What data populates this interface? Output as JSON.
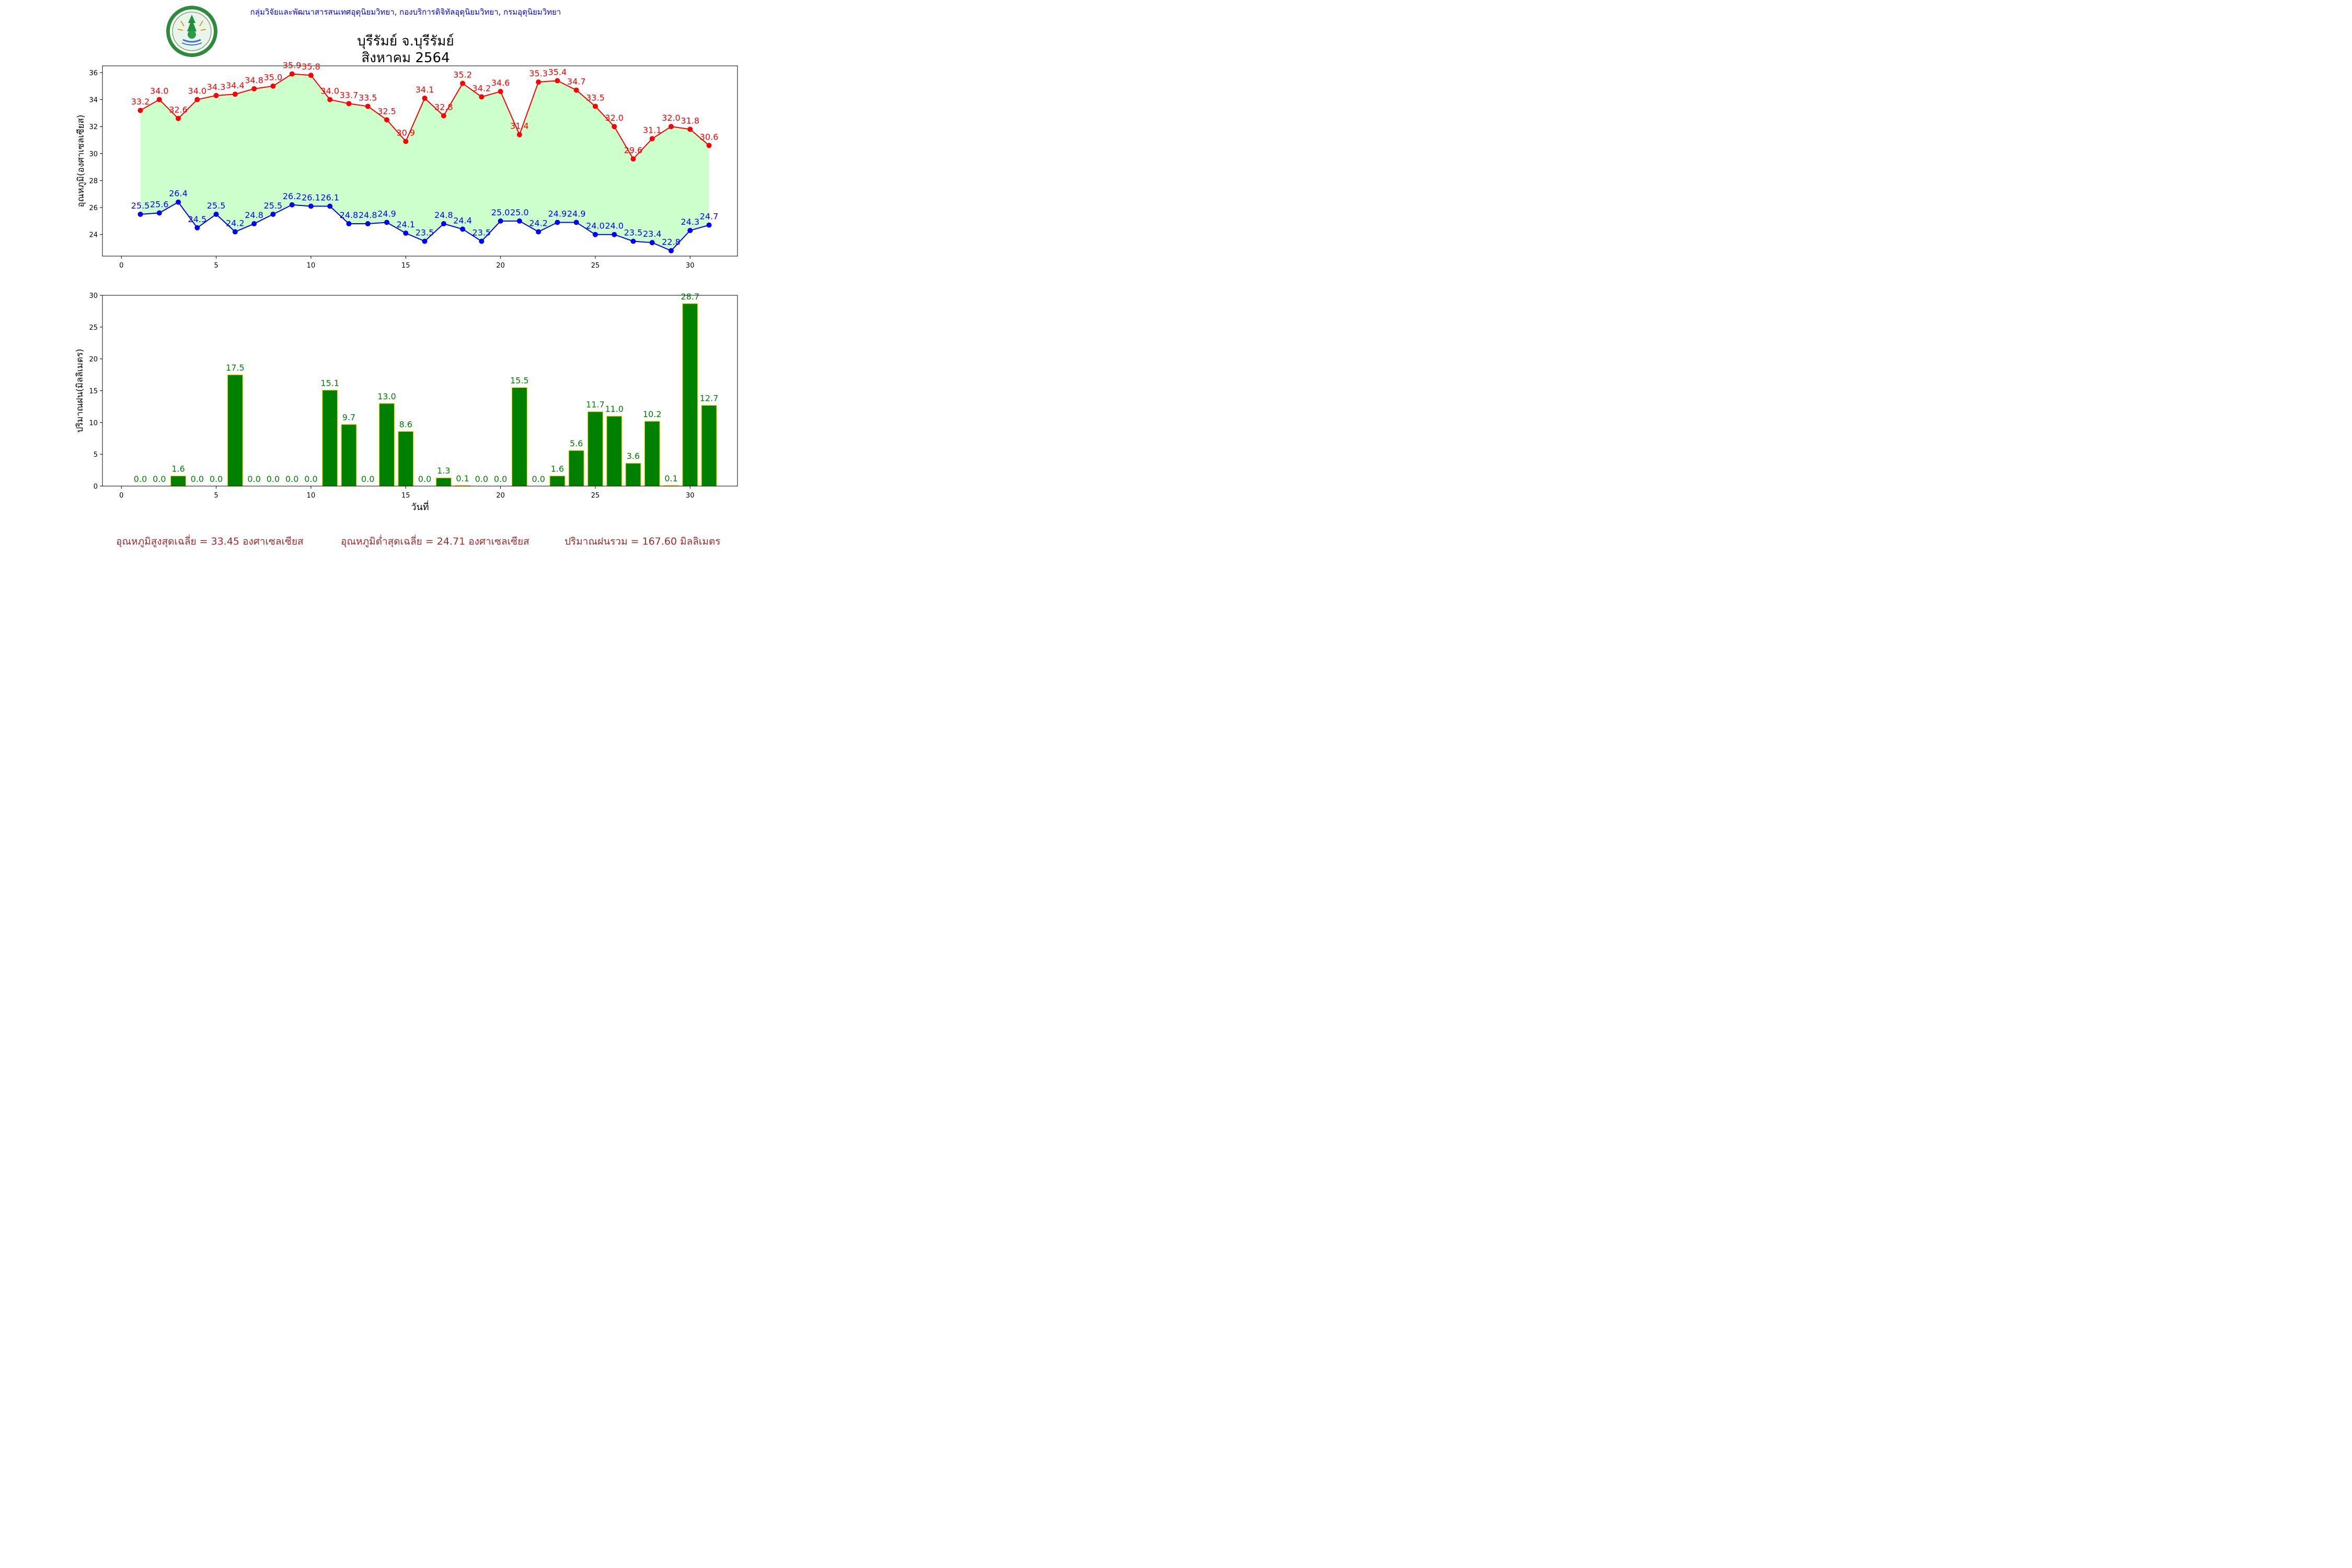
{
  "header": {
    "department_line": "กลุ่มวิจัยและพัฒนาสารสนเทศอุตุนิยมวิทยา, กองบริการดิจิทัลอุตุนิยมวิทยา, กรมอุตุนิยมวิทยา",
    "logo_name": "meteorological-department-logo",
    "logo_text": "กรมอุตุนิยมวิทยา · METEOROLOGICAL DEPARTMENT"
  },
  "title_line1": "บุรีรัมย์ จ.บุรีรัมย์",
  "title_line2": "สิงหาคม 2564",
  "colors": {
    "max_temp": "#ff0000",
    "min_temp": "#0000ff",
    "fill_between": "#ccffcc",
    "rain_bar": "#008000",
    "rain_bar_edge": "#ffd700",
    "rain_label": "#008000",
    "footer": "#a52a2a",
    "header": "#0000ff"
  },
  "chart_data": [
    {
      "type": "line",
      "title": "",
      "xlabel": "",
      "ylabel": "อุณหภูมิ(องศาเซลเซียส)",
      "x": [
        1,
        2,
        3,
        4,
        5,
        6,
        7,
        8,
        9,
        10,
        11,
        12,
        13,
        14,
        15,
        16,
        17,
        18,
        19,
        20,
        21,
        22,
        23,
        24,
        25,
        26,
        27,
        28,
        29,
        30,
        31
      ],
      "series": [
        {
          "values": [
            33.2,
            34.0,
            32.6,
            34.0,
            34.3,
            34.4,
            34.8,
            35.0,
            35.9,
            35.8,
            34.0,
            33.7,
            33.5,
            32.5,
            30.9,
            34.1,
            32.8,
            35.2,
            34.2,
            34.6,
            31.4,
            35.3,
            35.4,
            34.7,
            33.5,
            32.0,
            29.6,
            31.1,
            32.0,
            31.8,
            30.6
          ]
        },
        {
          "values": [
            25.5,
            25.6,
            26.4,
            24.5,
            25.5,
            24.2,
            24.8,
            25.5,
            26.2,
            26.1,
            26.1,
            24.8,
            24.8,
            24.9,
            24.1,
            23.5,
            24.8,
            24.4,
            23.5,
            25.0,
            25.0,
            24.2,
            24.9,
            24.9,
            24.0,
            24.0,
            23.5,
            23.4,
            22.8,
            24.3,
            24.7
          ]
        }
      ],
      "xlim": [
        -1,
        32.5
      ],
      "ylim": [
        22.4,
        36.5
      ],
      "xticks": [
        0,
        5,
        10,
        15,
        20,
        25,
        30
      ],
      "yticks": [
        24,
        26,
        28,
        30,
        32,
        34,
        36
      ],
      "grid": false,
      "legend": "none"
    },
    {
      "type": "bar",
      "title": "",
      "xlabel": "วันที่",
      "ylabel": "ปริมาณฝน(มิลลิเมตร)",
      "x": [
        1,
        2,
        3,
        4,
        5,
        6,
        7,
        8,
        9,
        10,
        11,
        12,
        13,
        14,
        15,
        16,
        17,
        18,
        19,
        20,
        21,
        22,
        23,
        24,
        25,
        26,
        27,
        28,
        29,
        30,
        31
      ],
      "values": [
        0.0,
        0.0,
        1.6,
        0.0,
        0.0,
        17.5,
        0.0,
        0.0,
        0.0,
        0.0,
        15.1,
        9.7,
        0.0,
        13.0,
        8.6,
        0.0,
        1.3,
        0.1,
        0.0,
        0.0,
        15.5,
        0.0,
        1.6,
        5.6,
        11.7,
        11.0,
        3.6,
        10.2,
        0.1,
        28.7,
        12.7
      ],
      "xlim": [
        -1,
        32.5
      ],
      "ylim": [
        0,
        30
      ],
      "xticks": [
        0,
        5,
        10,
        15,
        20,
        25,
        30
      ],
      "yticks": [
        0,
        5,
        10,
        15,
        20,
        25,
        30
      ],
      "grid": false,
      "legend": "none"
    }
  ],
  "footer": {
    "avg_max": "อุณหภูมิสูงสุดเฉลี่ย = 33.45 องศาเซลเซียส",
    "avg_min": "อุณหภูมิต่ำสุดเฉลี่ย = 24.71 องศาเซลเซียส",
    "total_rain": "ปริมาณฝนรวม = 167.60 มิลลิเมตร"
  }
}
